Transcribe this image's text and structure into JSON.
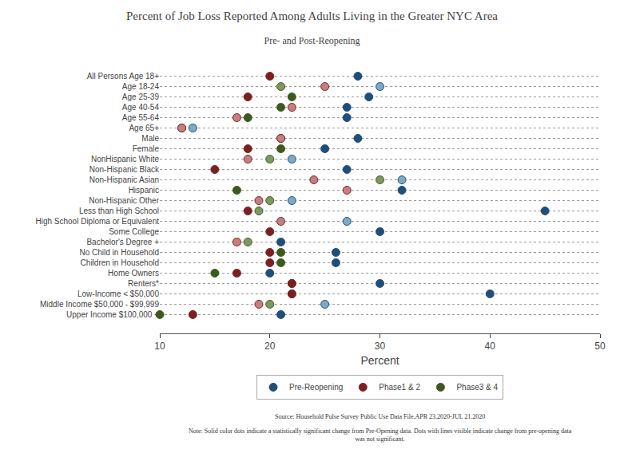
{
  "chart_data": {
    "type": "scatter",
    "orientation": "horizontal",
    "title": "Percent of Job Loss Reported Among Adults Living in the Greater NYC Area",
    "subtitle": "Pre- and Post-Reopening",
    "xlabel": "Percent",
    "xlim": [
      10,
      50
    ],
    "xticks": [
      10,
      20,
      30,
      40,
      50
    ],
    "grid": true,
    "legend": "bottom",
    "categories": [
      "All Persons Age 18+",
      "Age 18-24",
      "Age 25-39",
      "Age 40-54",
      "Age 55-64",
      "Age 65+",
      "Male",
      "Female",
      "NonHispanic White",
      "Non-Hispanic Black",
      "Non-Hispanic Asian",
      "Hispanic",
      "Non-Hispanic Other",
      "Less than High School",
      "High School Diploma or Equivalent",
      "Some College",
      "Bachelor's Degree +",
      "No Child in Household",
      "Children in Household",
      "Home Owners",
      "Renters*",
      "Low-Income < $50,000",
      "Middle Income $50,000 - $99,999",
      "Upper Income $100,000 +"
    ],
    "series": [
      {
        "name": "Pre-Reopening",
        "color": "#1f4e79",
        "marker": "circle",
        "values": [
          28,
          30,
          29,
          27,
          27,
          13,
          28,
          25,
          22,
          27,
          32,
          32,
          22,
          45,
          27,
          30,
          21,
          26,
          26,
          20,
          30,
          40,
          25,
          21
        ],
        "colors": [
          "#1f4e79",
          "#7fa8c8",
          "#1f4e79",
          "#1f4e79",
          "#1f4e79",
          "#7fa8c8",
          "#1f4e79",
          "#1f4e79",
          "#7fa8c8",
          "#1f4e79",
          "#7fa8c8",
          "#1f4e79",
          "#7fa8c8",
          "#1f4e79",
          "#7fa8c8",
          "#1f4e79",
          "#1f4e79",
          "#1f4e79",
          "#1f4e79",
          "#1f4e79",
          "#1f4e79",
          "#1f4e79",
          "#7fa8c8",
          "#1f4e79"
        ]
      },
      {
        "name": "Phase1 & 2",
        "color": "#7b2020",
        "marker": "circle",
        "values": [
          20,
          25,
          18,
          22,
          17,
          12,
          21,
          18,
          18,
          15,
          24,
          27,
          19,
          18,
          21,
          20,
          17,
          20,
          20,
          17,
          22,
          22,
          19,
          13
        ],
        "colors": [
          "#7b2020",
          "#c48080",
          "#7b2020",
          "#c48080",
          "#c48080",
          "#c48080",
          "#c48080",
          "#7b2020",
          "#c48080",
          "#7b2020",
          "#c48080",
          "#c48080",
          "#c48080",
          "#7b2020",
          "#c48080",
          "#7b2020",
          "#c48080",
          "#7b2020",
          "#7b2020",
          "#7b2020",
          "#7b2020",
          "#7b2020",
          "#c48080",
          "#7b2020"
        ]
      },
      {
        "name": "Phase3 & 4",
        "color": "#3d5a1e",
        "marker": "circle",
        "values": [
          null,
          21,
          22,
          21,
          18,
          12,
          21,
          21,
          20,
          null,
          30,
          17,
          20,
          19,
          null,
          null,
          18,
          21,
          21,
          15,
          22,
          22,
          20,
          10
        ],
        "colors": [
          null,
          "#7d9960",
          "#3d5a1e",
          "#3d5a1e",
          "#3d5a1e",
          "#7d9960",
          "#3d5a1e",
          "#3d5a1e",
          "#7d9960",
          null,
          "#7d9960",
          "#3d5a1e",
          "#7d9960",
          "#7d9960",
          null,
          null,
          "#7d9960",
          "#3d5a1e",
          "#3d5a1e",
          "#3d5a1e",
          "#3d5a1e",
          "#3d5a1e",
          "#7d9960",
          "#3d5a1e"
        ]
      }
    ],
    "annotations": [
      "Source: Household Pulse Survey Public Use Data File,APR 23,2020-JUL 21,2020",
      "Note: Solid color dots indicate a statistically significant change from Pre-Opening data. Dots with lines visible indicate change from pre-opening data\nwas not significant."
    ]
  }
}
